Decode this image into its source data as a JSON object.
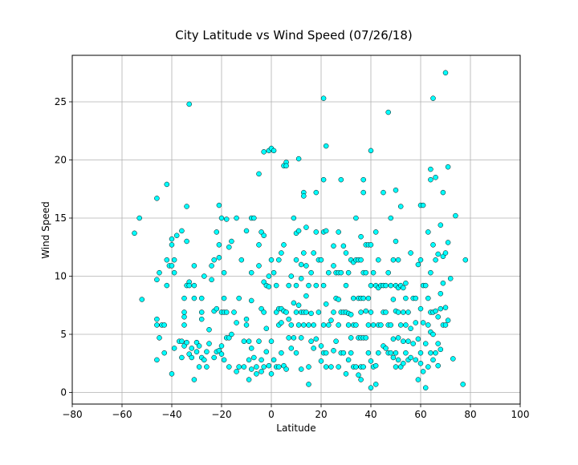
{
  "chart_data": {
    "type": "scatter",
    "title": "City Latitude vs Wind Speed (07/26/18)",
    "xlabel": "Latitude",
    "ylabel": "Wind Speed",
    "xlim": [
      -80,
      100
    ],
    "ylim": [
      -1,
      29
    ],
    "xticks": [
      -80,
      -60,
      -40,
      -20,
      0,
      20,
      40,
      60,
      80,
      100
    ],
    "yticks": [
      0,
      5,
      10,
      15,
      20,
      25
    ],
    "grid": true,
    "marker_face_color": "#00ffff",
    "marker_edge_color": "#000000",
    "points": [
      [
        -55,
        13.7
      ],
      [
        -53,
        15.0
      ],
      [
        -52,
        8.0
      ],
      [
        -46,
        16.7
      ],
      [
        -46,
        9.7
      ],
      [
        -46,
        6.3
      ],
      [
        -46,
        5.8
      ],
      [
        -46,
        2.8
      ],
      [
        -45,
        10.3
      ],
      [
        -45,
        4.7
      ],
      [
        -44,
        5.8
      ],
      [
        -43,
        5.8
      ],
      [
        -43,
        3.4
      ],
      [
        -42,
        17.9
      ],
      [
        -42,
        11.4
      ],
      [
        -42,
        9.2
      ],
      [
        -41,
        10.9
      ],
      [
        -40,
        13.2
      ],
      [
        -40,
        12.7
      ],
      [
        -40,
        10.9
      ],
      [
        -40,
        1.6
      ],
      [
        -39,
        11.4
      ],
      [
        -39,
        10.3
      ],
      [
        -39,
        3.8
      ],
      [
        -38,
        13.5
      ],
      [
        -37,
        4.4
      ],
      [
        -36,
        13.9
      ],
      [
        -36,
        4.4
      ],
      [
        -36,
        3.0
      ],
      [
        -35,
        8.1
      ],
      [
        -35,
        6.9
      ],
      [
        -35,
        6.5
      ],
      [
        -35,
        5.8
      ],
      [
        -35,
        4.0
      ],
      [
        -34,
        13.0
      ],
      [
        -34,
        16.0
      ],
      [
        -34,
        9.2
      ],
      [
        -34,
        4.3
      ],
      [
        -33,
        24.8
      ],
      [
        -33,
        9.5
      ],
      [
        -33,
        9.2
      ],
      [
        -33,
        3.3
      ],
      [
        -32,
        3.8
      ],
      [
        -32,
        3.0
      ],
      [
        -31,
        10.9
      ],
      [
        -31,
        9.2
      ],
      [
        -31,
        8.1
      ],
      [
        -31,
        1.1
      ],
      [
        -30,
        4.3
      ],
      [
        -30,
        3.5
      ],
      [
        -29,
        2.2
      ],
      [
        -29,
        4.0
      ],
      [
        -28,
        6.9
      ],
      [
        -28,
        6.3
      ],
      [
        -28,
        8.1
      ],
      [
        -28,
        3.0
      ],
      [
        -27,
        10.0
      ],
      [
        -27,
        2.8
      ],
      [
        -26,
        2.2
      ],
      [
        -26,
        3.5
      ],
      [
        -25,
        5.4
      ],
      [
        -25,
        4.2
      ],
      [
        -24,
        10.9
      ],
      [
        -24,
        9.7
      ],
      [
        -23,
        11.4
      ],
      [
        -23,
        7.0
      ],
      [
        -23,
        3.0
      ],
      [
        -22,
        13.8
      ],
      [
        -22,
        7.2
      ],
      [
        -22,
        3.5
      ],
      [
        -21,
        16.1
      ],
      [
        -21,
        12.7
      ],
      [
        -21,
        11.6
      ],
      [
        -21,
        3.6
      ],
      [
        -20,
        15.0
      ],
      [
        -20,
        6.9
      ],
      [
        -20,
        4.0
      ],
      [
        -20,
        3.3
      ],
      [
        -19,
        10.3
      ],
      [
        -19,
        8.1
      ],
      [
        -19,
        6.9
      ],
      [
        -19,
        2.8
      ],
      [
        -18,
        14.9
      ],
      [
        -18,
        6.9
      ],
      [
        -18,
        4.7
      ],
      [
        -17,
        12.5
      ],
      [
        -17,
        4.7
      ],
      [
        -17,
        2.2
      ],
      [
        -16,
        13.0
      ],
      [
        -16,
        5.0
      ],
      [
        -15,
        6.9
      ],
      [
        -14,
        15.0
      ],
      [
        -14,
        6.0
      ],
      [
        -14,
        1.8
      ],
      [
        -13,
        8.1
      ],
      [
        -13,
        2.2
      ],
      [
        -12,
        11.4
      ],
      [
        -11,
        4.4
      ],
      [
        -11,
        2.2
      ],
      [
        -10,
        13.9
      ],
      [
        -10,
        6.3
      ],
      [
        -10,
        5.8
      ],
      [
        -9,
        4.4
      ],
      [
        -9,
        2.8
      ],
      [
        -9,
        1.1
      ],
      [
        -8,
        15.0
      ],
      [
        -8,
        10.3
      ],
      [
        -8,
        7.9
      ],
      [
        -8,
        3.8
      ],
      [
        -8,
        2.0
      ],
      [
        -7,
        15.0
      ],
      [
        -7,
        3.0
      ],
      [
        -6,
        2.2
      ],
      [
        -6,
        1.6
      ],
      [
        -5,
        18.8
      ],
      [
        -5,
        12.7
      ],
      [
        -5,
        10.9
      ],
      [
        -5,
        4.4
      ],
      [
        -4,
        13.8
      ],
      [
        -4,
        7.2
      ],
      [
        -4,
        2.8
      ],
      [
        -4,
        1.8
      ],
      [
        -3,
        20.7
      ],
      [
        -3,
        13.5
      ],
      [
        -3,
        9.5
      ],
      [
        -3,
        6.9
      ],
      [
        -3,
        2.2
      ],
      [
        -2,
        9.2
      ],
      [
        -2,
        5.5
      ],
      [
        -2,
        3.5
      ],
      [
        -1,
        20.8
      ],
      [
        -1,
        10.0
      ],
      [
        -1,
        9.1
      ],
      [
        -1,
        2.3
      ],
      [
        0,
        21.0
      ],
      [
        0,
        11.4
      ],
      [
        0,
        4.4
      ],
      [
        0,
        1.6
      ],
      [
        1,
        20.8
      ],
      [
        1,
        10.3
      ],
      [
        1,
        2.8
      ],
      [
        2,
        9.2
      ],
      [
        2,
        6.9
      ],
      [
        2,
        2.2
      ],
      [
        3,
        11.4
      ],
      [
        3,
        7.2
      ],
      [
        3,
        5.8
      ],
      [
        3,
        2.2
      ],
      [
        4,
        12.0
      ],
      [
        4,
        7.2
      ],
      [
        4,
        6.0
      ],
      [
        4,
        3.4
      ],
      [
        5,
        19.5
      ],
      [
        5,
        12.7
      ],
      [
        5,
        7.0
      ],
      [
        5,
        2.3
      ],
      [
        6,
        19.8
      ],
      [
        6,
        19.5
      ],
      [
        6,
        6.9
      ],
      [
        6,
        2.0
      ],
      [
        7,
        9.2
      ],
      [
        7,
        6.3
      ],
      [
        7,
        4.7
      ],
      [
        8,
        10.0
      ],
      [
        8,
        5.8
      ],
      [
        8,
        3.8
      ],
      [
        9,
        15.0
      ],
      [
        9,
        7.7
      ],
      [
        9,
        4.7
      ],
      [
        10,
        13.7
      ],
      [
        10,
        11.4
      ],
      [
        10,
        9.2
      ],
      [
        10,
        6.9
      ],
      [
        10,
        3.4
      ],
      [
        11,
        20.1
      ],
      [
        11,
        13.9
      ],
      [
        11,
        7.5
      ],
      [
        11,
        5.8
      ],
      [
        12,
        11.0
      ],
      [
        12,
        9.8
      ],
      [
        12,
        6.9
      ],
      [
        12,
        4.7
      ],
      [
        12,
        2.0
      ],
      [
        13,
        17.2
      ],
      [
        13,
        16.9
      ],
      [
        13,
        12.0
      ],
      [
        13,
        6.9
      ],
      [
        13,
        5.8
      ],
      [
        14,
        14.2
      ],
      [
        14,
        10.9
      ],
      [
        14,
        8.3
      ],
      [
        14,
        6.9
      ],
      [
        15,
        9.2
      ],
      [
        15,
        5.8
      ],
      [
        15,
        2.2
      ],
      [
        15,
        0.7
      ],
      [
        16,
        10.3
      ],
      [
        16,
        6.8
      ],
      [
        16,
        4.4
      ],
      [
        17,
        12.0
      ],
      [
        17,
        5.8
      ],
      [
        17,
        3.8
      ],
      [
        18,
        17.2
      ],
      [
        18,
        13.8
      ],
      [
        18,
        9.2
      ],
      [
        18,
        4.6
      ],
      [
        19,
        11.4
      ],
      [
        19,
        6.9
      ],
      [
        20,
        11.4
      ],
      [
        20,
        4.0
      ],
      [
        20,
        2.7
      ],
      [
        21,
        25.3
      ],
      [
        21,
        18.3
      ],
      [
        21,
        13.8
      ],
      [
        21,
        9.2
      ],
      [
        21,
        5.8
      ],
      [
        21,
        3.4
      ],
      [
        22,
        21.2
      ],
      [
        22,
        13.9
      ],
      [
        22,
        7.6
      ],
      [
        22,
        3.4
      ],
      [
        22,
        2.2
      ],
      [
        23,
        10.3
      ],
      [
        23,
        5.8
      ],
      [
        24,
        6.2
      ],
      [
        24,
        2.2
      ],
      [
        25,
        12.6
      ],
      [
        25,
        10.9
      ],
      [
        25,
        6.9
      ],
      [
        25,
        3.6
      ],
      [
        26,
        10.3
      ],
      [
        26,
        8.1
      ],
      [
        26,
        4.4
      ],
      [
        27,
        13.8
      ],
      [
        27,
        10.3
      ],
      [
        27,
        8.0
      ],
      [
        27,
        5.8
      ],
      [
        27,
        2.2
      ],
      [
        28,
        18.3
      ],
      [
        28,
        10.3
      ],
      [
        28,
        6.9
      ],
      [
        28,
        3.4
      ],
      [
        29,
        12.6
      ],
      [
        29,
        6.9
      ],
      [
        29,
        3.4
      ],
      [
        30,
        12.0
      ],
      [
        30,
        9.2
      ],
      [
        30,
        6.9
      ],
      [
        30,
        1.6
      ],
      [
        31,
        10.3
      ],
      [
        31,
        6.8
      ],
      [
        31,
        5.8
      ],
      [
        31,
        2.8
      ],
      [
        32,
        11.4
      ],
      [
        32,
        6.7
      ],
      [
        32,
        4.7
      ],
      [
        32,
        3.4
      ],
      [
        33,
        11.2
      ],
      [
        33,
        8.1
      ],
      [
        33,
        5.8
      ],
      [
        33,
        2.2
      ],
      [
        34,
        15.0
      ],
      [
        34,
        11.4
      ],
      [
        34,
        5.8
      ],
      [
        34,
        2.2
      ],
      [
        35,
        11.4
      ],
      [
        35,
        8.1
      ],
      [
        35,
        4.7
      ],
      [
        35,
        1.5
      ],
      [
        36,
        13.4
      ],
      [
        36,
        11.4
      ],
      [
        36,
        8.1
      ],
      [
        36,
        6.9
      ],
      [
        36,
        4.7
      ],
      [
        36,
        2.2
      ],
      [
        36,
        1.1
      ],
      [
        37,
        18.3
      ],
      [
        37,
        17.2
      ],
      [
        37,
        10.3
      ],
      [
        37,
        8.1
      ],
      [
        37,
        4.7
      ],
      [
        37,
        2.2
      ],
      [
        38,
        12.7
      ],
      [
        38,
        10.3
      ],
      [
        38,
        7.0
      ],
      [
        38,
        4.7
      ],
      [
        39,
        12.7
      ],
      [
        39,
        8.1
      ],
      [
        39,
        5.8
      ],
      [
        39,
        3.4
      ],
      [
        40,
        20.8
      ],
      [
        40,
        12.7
      ],
      [
        40,
        9.2
      ],
      [
        40,
        6.9
      ],
      [
        40,
        2.7
      ],
      [
        40,
        0.4
      ],
      [
        41,
        10.3
      ],
      [
        41,
        5.8
      ],
      [
        41,
        2.2
      ],
      [
        42,
        13.8
      ],
      [
        42,
        9.2
      ],
      [
        42,
        2.3
      ],
      [
        42,
        0.7
      ],
      [
        43,
        11.4
      ],
      [
        43,
        9.0
      ],
      [
        43,
        5.8
      ],
      [
        43,
        3.4
      ],
      [
        44,
        9.2
      ],
      [
        44,
        5.8
      ],
      [
        45,
        17.2
      ],
      [
        45,
        9.2
      ],
      [
        45,
        6.9
      ],
      [
        45,
        4.0
      ],
      [
        46,
        9.2
      ],
      [
        46,
        6.9
      ],
      [
        46,
        3.8
      ],
      [
        47,
        24.1
      ],
      [
        47,
        10.3
      ],
      [
        47,
        5.8
      ],
      [
        47,
        3.4
      ],
      [
        48,
        15.0
      ],
      [
        48,
        9.2
      ],
      [
        48,
        5.8
      ],
      [
        48,
        3.4
      ],
      [
        49,
        11.4
      ],
      [
        49,
        8.0
      ],
      [
        49,
        4.6
      ],
      [
        49,
        3.0
      ],
      [
        50,
        17.4
      ],
      [
        50,
        13.0
      ],
      [
        50,
        9.2
      ],
      [
        50,
        7.0
      ],
      [
        50,
        3.4
      ],
      [
        50,
        2.2
      ],
      [
        51,
        11.4
      ],
      [
        51,
        9.0
      ],
      [
        51,
        6.9
      ],
      [
        51,
        4.7
      ],
      [
        51,
        2.8
      ],
      [
        52,
        16.0
      ],
      [
        52,
        9.2
      ],
      [
        52,
        5.8
      ],
      [
        52,
        2.2
      ],
      [
        53,
        9.0
      ],
      [
        53,
        6.9
      ],
      [
        53,
        4.4
      ],
      [
        53,
        2.5
      ],
      [
        54,
        9.4
      ],
      [
        54,
        8.1
      ],
      [
        54,
        5.8
      ],
      [
        54,
        3.4
      ],
      [
        55,
        6.9
      ],
      [
        55,
        4.4
      ],
      [
        55,
        2.8
      ],
      [
        56,
        12.0
      ],
      [
        56,
        5.5
      ],
      [
        56,
        3.0
      ],
      [
        57,
        8.1
      ],
      [
        57,
        4.2
      ],
      [
        58,
        8.1
      ],
      [
        58,
        6.0
      ],
      [
        58,
        2.8
      ],
      [
        59,
        11.0
      ],
      [
        59,
        4.6
      ],
      [
        59,
        1.1
      ],
      [
        60,
        16.1
      ],
      [
        60,
        11.4
      ],
      [
        60,
        7.2
      ],
      [
        60,
        3.4
      ],
      [
        60,
        2.5
      ],
      [
        61,
        16.1
      ],
      [
        61,
        9.2
      ],
      [
        61,
        6.0
      ],
      [
        61,
        1.8
      ],
      [
        62,
        9.2
      ],
      [
        62,
        4.2
      ],
      [
        62,
        0.4
      ],
      [
        63,
        13.8
      ],
      [
        63,
        8.1
      ],
      [
        63,
        5.8
      ],
      [
        63,
        2.2
      ],
      [
        64,
        19.2
      ],
      [
        64,
        18.3
      ],
      [
        64,
        10.3
      ],
      [
        64,
        6.9
      ],
      [
        64,
        5.2
      ],
      [
        64,
        3.4
      ],
      [
        65,
        25.3
      ],
      [
        65,
        12.7
      ],
      [
        65,
        6.9
      ],
      [
        65,
        5.0
      ],
      [
        65,
        2.8
      ],
      [
        66,
        18.5
      ],
      [
        66,
        11.4
      ],
      [
        66,
        7.0
      ],
      [
        66,
        3.4
      ],
      [
        67,
        11.9
      ],
      [
        67,
        6.5
      ],
      [
        67,
        4.2
      ],
      [
        67,
        2.3
      ],
      [
        68,
        14.4
      ],
      [
        68,
        8.5
      ],
      [
        68,
        7.2
      ],
      [
        68,
        3.7
      ],
      [
        69,
        17.2
      ],
      [
        69,
        11.7
      ],
      [
        69,
        9.4
      ],
      [
        69,
        5.8
      ],
      [
        70,
        27.5
      ],
      [
        70,
        12.0
      ],
      [
        70,
        7.3
      ],
      [
        70,
        5.8
      ],
      [
        71,
        19.4
      ],
      [
        71,
        12.9
      ],
      [
        71,
        6.2
      ],
      [
        72,
        9.8
      ],
      [
        73,
        2.9
      ],
      [
        74,
        15.2
      ],
      [
        77,
        0.7
      ],
      [
        78,
        11.4
      ]
    ]
  }
}
